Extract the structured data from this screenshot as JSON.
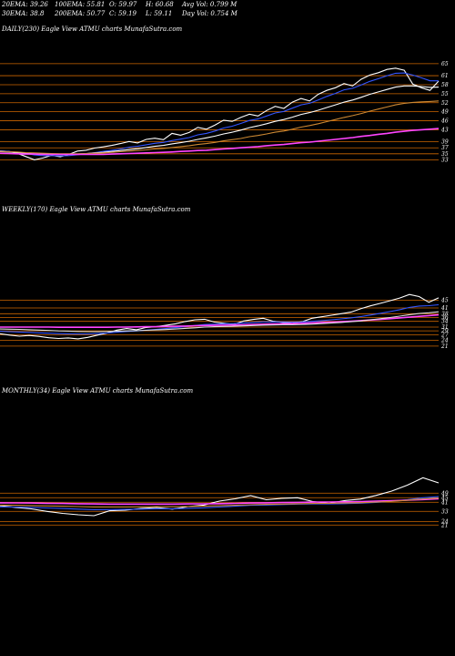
{
  "header": {
    "row1": [
      "20EMA: 39.26",
      "100EMA: 55.81",
      "O: 59.97",
      "H: 60.68",
      "Avg Vol: 0.799 M"
    ],
    "row2": [
      "30EMA: 38.8",
      "200EMA: 50.77",
      "C: 59.19",
      "L: 59.11",
      "Day Vol: 0.754  M"
    ]
  },
  "chart_data": [
    {
      "type": "line",
      "title": "DAILY(230) Eagle   View  ATMU  charts  MunafaSutra.com",
      "price_levels": [
        65,
        61,
        58,
        55,
        52,
        49,
        46,
        43,
        39,
        37,
        35,
        33
      ],
      "ytick_labels": [
        "65",
        "61",
        "58",
        "55",
        "52",
        "49",
        "46",
        "43",
        "39",
        "37",
        "35",
        "33"
      ],
      "series": [
        {
          "color": "#ffffff",
          "values": [
            36.0,
            35.8,
            35.2,
            34.1,
            33.0,
            33.6,
            34.5,
            34.0,
            34.8,
            35.9,
            36.2,
            36.9,
            37.3,
            37.8,
            38.4,
            39.1,
            38.6,
            39.8,
            40.2,
            39.7,
            41.8,
            41.2,
            42.1,
            43.8,
            43.2,
            44.6,
            46.2,
            45.8,
            47.1,
            48.2,
            47.6,
            49.4,
            50.8,
            50.1,
            52.2,
            53.4,
            52.6,
            54.8,
            56.1,
            57.0,
            58.4,
            57.6,
            59.8,
            61.2,
            62.0,
            63.1,
            63.5,
            62.8,
            58.2,
            57.0,
            56.1,
            59.2
          ]
        },
        {
          "color": "#3355ff",
          "values": [
            35.9,
            35.8,
            35.5,
            35.1,
            34.6,
            34.4,
            34.4,
            34.3,
            34.4,
            34.7,
            35.0,
            35.4,
            35.8,
            36.2,
            36.6,
            37.2,
            37.5,
            38.0,
            38.5,
            38.8,
            39.4,
            39.9,
            40.4,
            41.3,
            41.8,
            42.6,
            43.6,
            44.2,
            45.1,
            46.1,
            46.6,
            47.6,
            48.6,
            49.1,
            50.2,
            51.3,
            51.8,
            52.9,
            54.1,
            55.1,
            56.3,
            56.8,
            57.9,
            59.1,
            60.0,
            61.0,
            61.8,
            61.9,
            61.2,
            60.3,
            59.3,
            59.3
          ]
        },
        {
          "color": "#ffffff",
          "values": [
            35.7,
            35.6,
            35.4,
            35.2,
            35.0,
            34.9,
            34.9,
            34.8,
            34.8,
            34.9,
            35.1,
            35.3,
            35.5,
            35.8,
            36.1,
            36.4,
            36.7,
            37.1,
            37.5,
            37.8,
            38.3,
            38.7,
            39.2,
            39.8,
            40.3,
            40.9,
            41.6,
            42.2,
            42.9,
            43.7,
            44.3,
            45.0,
            45.8,
            46.4,
            47.2,
            48.1,
            48.7,
            49.5,
            50.4,
            51.3,
            52.2,
            52.9,
            53.8,
            54.8,
            55.6,
            56.4,
            57.2,
            57.6,
            57.6,
            57.4,
            57.1,
            57.2
          ]
        },
        {
          "color": "#cc8833",
          "values": [
            35.8,
            35.7,
            35.6,
            35.4,
            35.3,
            35.2,
            35.1,
            35.0,
            35.0,
            35.0,
            35.1,
            35.2,
            35.3,
            35.5,
            35.7,
            35.9,
            36.1,
            36.3,
            36.6,
            36.8,
            37.1,
            37.4,
            37.7,
            38.1,
            38.4,
            38.8,
            39.3,
            39.7,
            40.1,
            40.7,
            41.1,
            41.6,
            42.2,
            42.6,
            43.2,
            43.9,
            44.4,
            45.0,
            45.7,
            46.4,
            47.1,
            47.7,
            48.4,
            49.2,
            49.9,
            50.6,
            51.3,
            51.8,
            52.1,
            52.3,
            52.4,
            52.6
          ]
        },
        {
          "color": "#ff44ff",
          "values": [
            35.2,
            35.1,
            35.0,
            34.9,
            34.9,
            34.8,
            34.8,
            34.8,
            34.8,
            34.8,
            34.8,
            34.8,
            34.8,
            34.9,
            35.0,
            35.1,
            35.2,
            35.3,
            35.4,
            35.5,
            35.6,
            35.8,
            35.9,
            36.1,
            36.2,
            36.4,
            36.6,
            36.8,
            37.0,
            37.2,
            37.4,
            37.7,
            37.9,
            38.1,
            38.4,
            38.7,
            38.9,
            39.2,
            39.5,
            39.8,
            40.1,
            40.4,
            40.8,
            41.1,
            41.5,
            41.8,
            42.2,
            42.5,
            42.8,
            43.0,
            43.2,
            43.4
          ]
        }
      ],
      "ylim": [
        31,
        68
      ]
    },
    {
      "type": "line",
      "title": "WEEKLY(170) Eagle   View  ATMU  charts  MunafaSutra.com",
      "price_levels": [
        45,
        41,
        38,
        36,
        34,
        31,
        29,
        27,
        24,
        21
      ],
      "ytick_labels": [
        "45",
        "41",
        "38",
        "36",
        "34",
        "31",
        "29",
        "27",
        "24",
        "21"
      ],
      "series": [
        {
          "color": "#ffffff",
          "values": [
            27.5,
            26.8,
            26.2,
            26.6,
            26.1,
            25.4,
            25.0,
            25.3,
            24.8,
            25.6,
            26.8,
            27.9,
            29.4,
            30.2,
            29.6,
            30.8,
            31.2,
            31.9,
            32.7,
            33.9,
            34.8,
            35.1,
            33.6,
            33.0,
            32.4,
            34.2,
            35.0,
            35.6,
            34.1,
            33.4,
            33.0,
            33.8,
            35.6,
            36.4,
            37.2,
            38.0,
            38.8,
            40.6,
            42.1,
            43.4,
            44.8,
            46.2,
            48.1,
            47.0,
            44.0,
            46.3
          ]
        },
        {
          "color": "#3355ff",
          "values": [
            28.8,
            28.6,
            28.4,
            28.2,
            28.0,
            27.8,
            27.6,
            27.5,
            27.4,
            27.4,
            27.6,
            27.9,
            28.3,
            28.7,
            29.0,
            29.4,
            29.8,
            30.2,
            30.7,
            31.2,
            31.8,
            32.3,
            32.5,
            32.7,
            32.8,
            33.1,
            33.4,
            33.7,
            33.7,
            33.7,
            33.6,
            33.7,
            34.0,
            34.4,
            34.8,
            35.3,
            35.8,
            36.5,
            37.3,
            38.2,
            39.1,
            40.1,
            41.3,
            42.0,
            42.2,
            42.7
          ]
        },
        {
          "color": "#ff44ff",
          "values": [
            31.0,
            31.0,
            31.0,
            31.0,
            31.0,
            31.0,
            30.9,
            30.9,
            30.9,
            30.9,
            30.9,
            30.9,
            31.0,
            31.0,
            31.1,
            31.2,
            31.2,
            31.3,
            31.4,
            31.5,
            31.7,
            31.8,
            31.9,
            32.0,
            32.1,
            32.2,
            32.3,
            32.5,
            32.6,
            32.7,
            32.8,
            33.0,
            33.2,
            33.4,
            33.6,
            33.8,
            34.1,
            34.4,
            34.7,
            35.0,
            35.4,
            35.8,
            36.2,
            36.6,
            37.0,
            37.4
          ]
        },
        {
          "color": "#dddddd",
          "values": [
            30.0,
            29.9,
            29.8,
            29.6,
            29.4,
            29.2,
            29.0,
            28.9,
            28.7,
            28.6,
            28.6,
            28.7,
            28.8,
            29.0,
            29.1,
            29.3,
            29.5,
            29.7,
            30.0,
            30.3,
            30.6,
            31.0,
            31.2,
            31.3,
            31.4,
            31.6,
            31.8,
            32.0,
            32.1,
            32.2,
            32.2,
            32.3,
            32.5,
            32.8,
            33.1,
            33.4,
            33.8,
            34.2,
            34.8,
            35.4,
            36.0,
            36.7,
            37.5,
            38.1,
            38.5,
            39.0
          ]
        }
      ],
      "ylim": [
        20,
        52
      ]
    },
    {
      "type": "line",
      "title": "MONTHLY(34) Eagle   View  ATMU  charts  MunafaSutra.com",
      "price_levels": [
        49,
        45,
        41,
        33,
        24,
        21
      ],
      "ytick_labels": [
        "49",
        "45",
        "41",
        "33",
        "24",
        "21"
      ],
      "series": [
        {
          "color": "#ffffff",
          "values": [
            38.0,
            36.5,
            35.2,
            33.0,
            31.2,
            30.0,
            29.2,
            33.5,
            34.0,
            35.5,
            36.4,
            35.0,
            37.2,
            38.5,
            42.0,
            44.0,
            46.8,
            43.2,
            44.5,
            45.0,
            41.5,
            40.0,
            42.5,
            43.8,
            47.0,
            50.8,
            56.0,
            62.5,
            58.0
          ]
        },
        {
          "color": "#3355ff",
          "values": [
            37.0,
            36.8,
            36.5,
            36.0,
            35.5,
            35.0,
            34.5,
            34.6,
            34.7,
            35.0,
            35.3,
            35.3,
            35.7,
            36.1,
            36.8,
            37.5,
            38.3,
            38.6,
            39.0,
            39.4,
            39.5,
            39.5,
            39.8,
            40.2,
            40.9,
            41.9,
            43.3,
            45.0,
            45.9
          ]
        },
        {
          "color": "#ff44ff",
          "values": [
            40.5,
            40.4,
            40.3,
            40.1,
            39.9,
            39.7,
            39.5,
            39.4,
            39.4,
            39.4,
            39.4,
            39.4,
            39.5,
            39.6,
            39.8,
            40.0,
            40.3,
            40.5,
            40.7,
            40.9,
            41.1,
            41.2,
            41.4,
            41.6,
            41.9,
            42.3,
            42.8,
            43.4,
            44.0
          ]
        },
        {
          "color": "#cc8833",
          "values": [
            38.5,
            38.3,
            38.1,
            37.8,
            37.5,
            37.2,
            36.9,
            36.9,
            36.9,
            37.0,
            37.1,
            37.1,
            37.3,
            37.5,
            37.9,
            38.3,
            38.8,
            39.1,
            39.4,
            39.7,
            39.9,
            40.0,
            40.3,
            40.6,
            41.1,
            41.8,
            42.7,
            43.9,
            44.7
          ]
        }
      ],
      "ylim": [
        14,
        70
      ]
    }
  ]
}
